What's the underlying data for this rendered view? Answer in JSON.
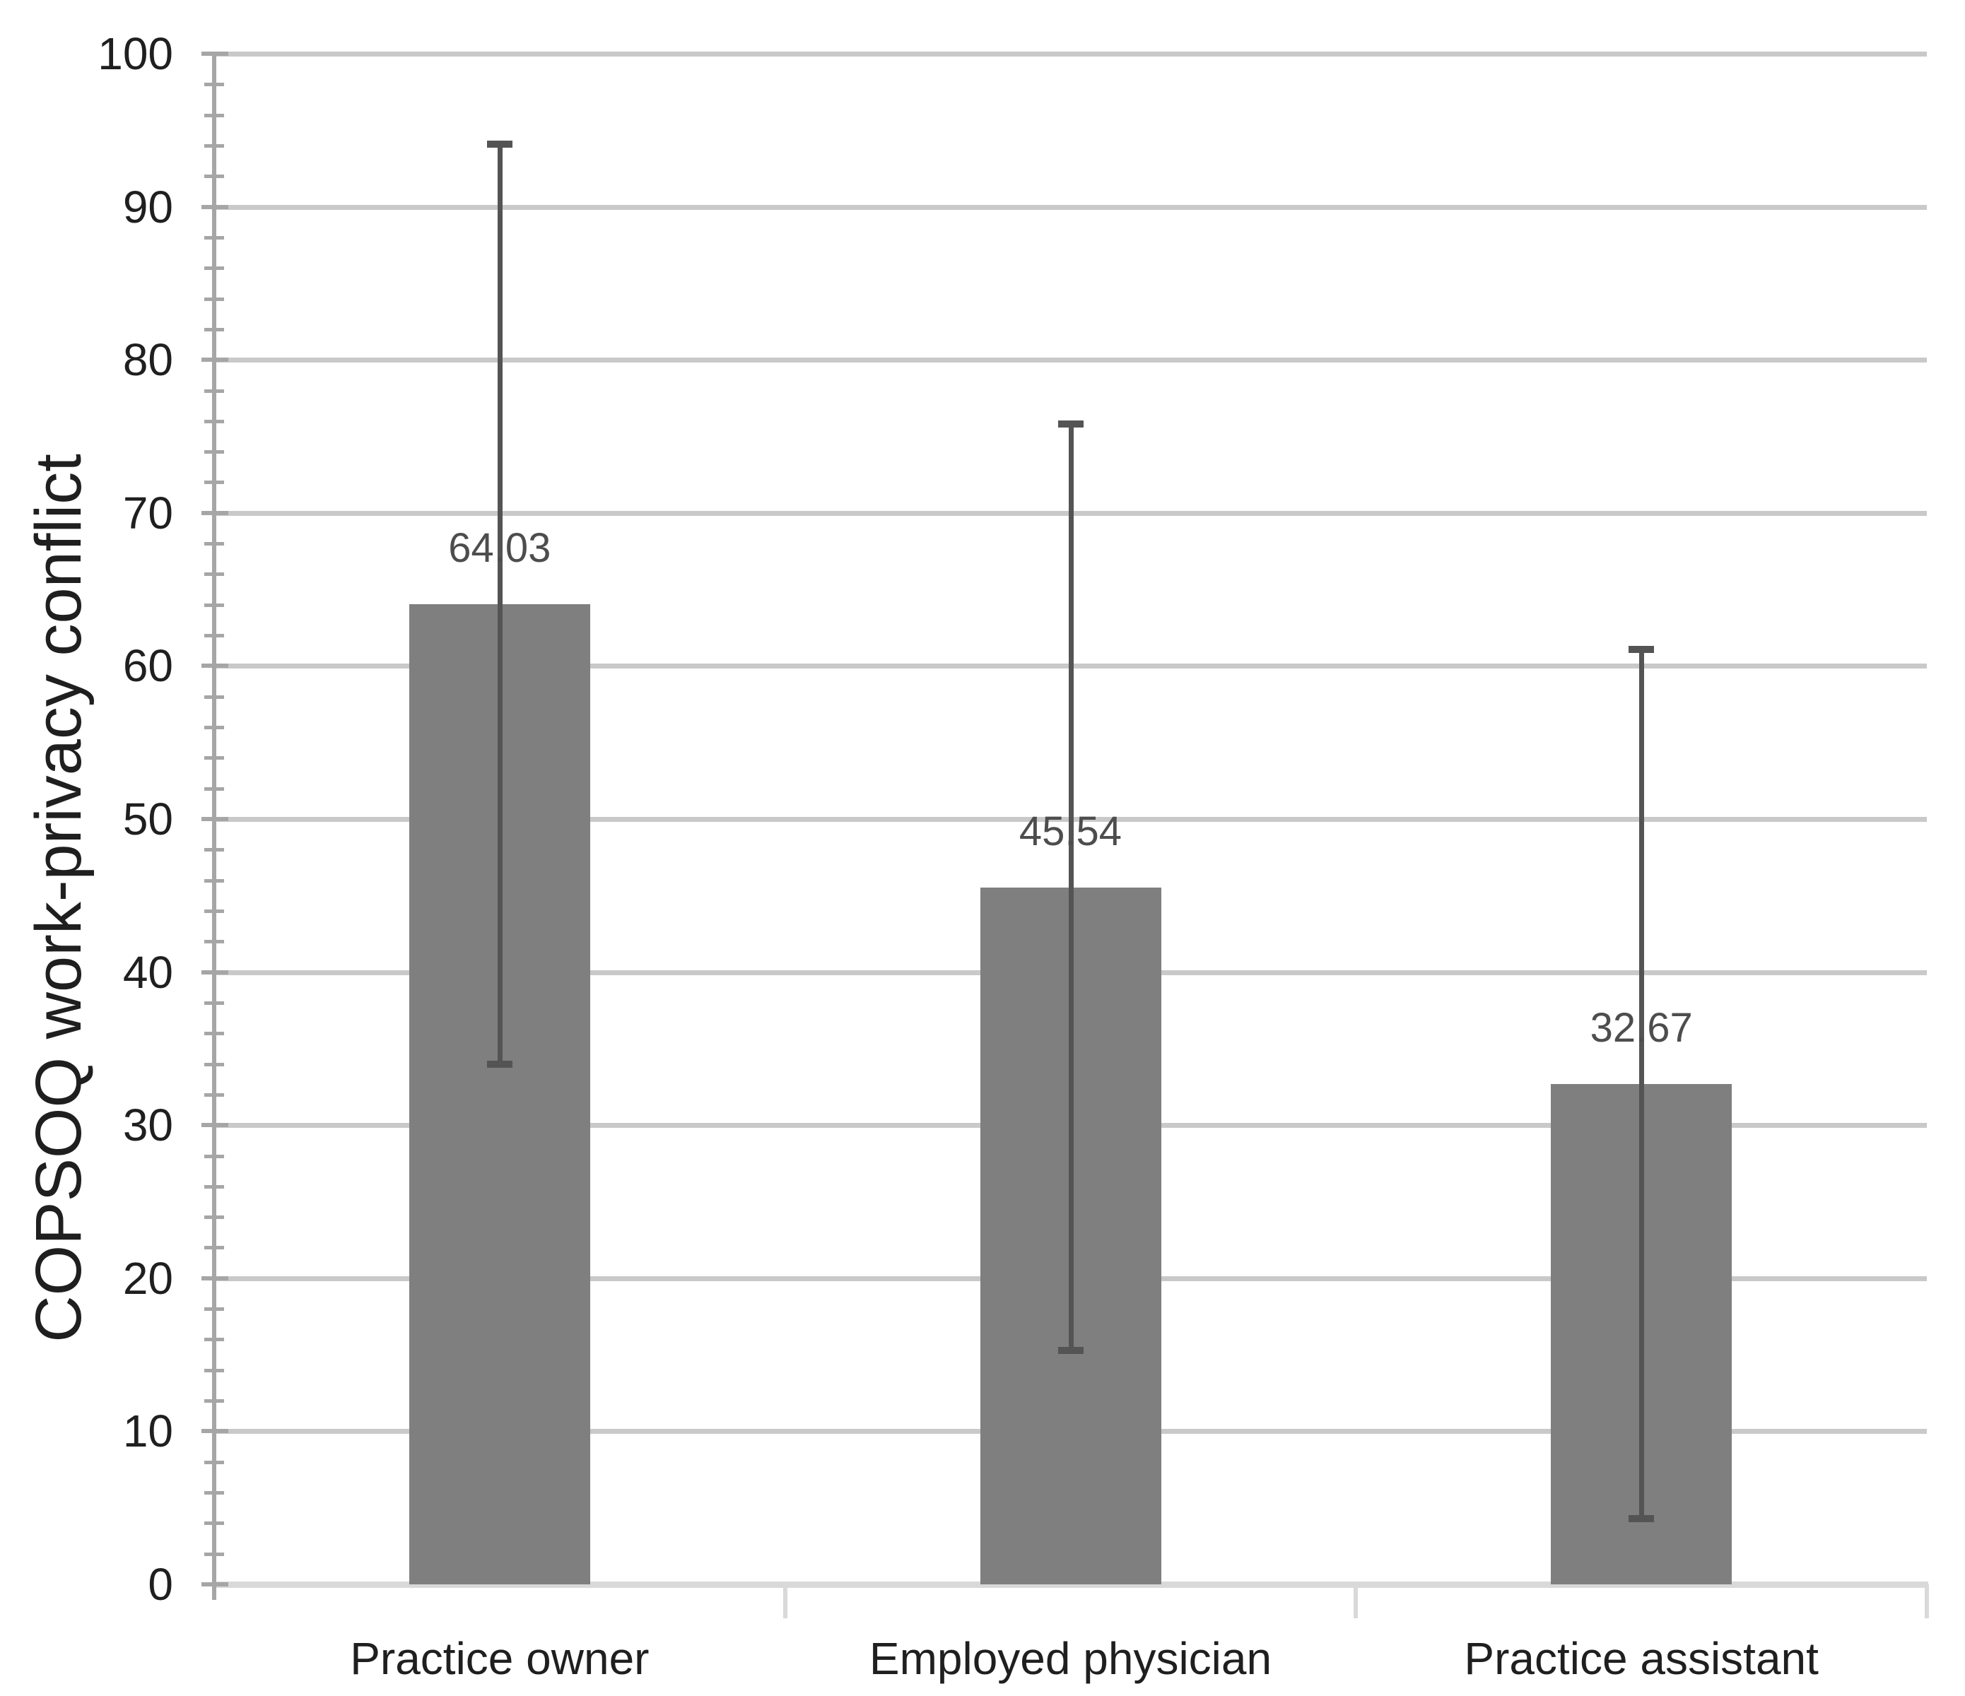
{
  "chart_data": {
    "type": "bar",
    "title": "",
    "ylabel": "COPSOQ work-privacy conflict",
    "xlabel": "",
    "categories": [
      "Practice owner",
      "Employed physician",
      "Practice assistant"
    ],
    "values": [
      64.03,
      45.54,
      32.67
    ],
    "data_labels": [
      "64.03",
      "45.54",
      "32.67"
    ],
    "error_bars": {
      "upper": [
        94.1,
        75.8,
        61.1
      ],
      "lower": [
        34.0,
        15.3,
        4.3
      ]
    },
    "ylim": [
      0,
      100
    ],
    "ytick_interval": 10,
    "yminor_tick_interval": 2,
    "ytick_labels": [
      "0",
      "10",
      "20",
      "30",
      "40",
      "50",
      "60",
      "70",
      "80",
      "90",
      "100"
    ],
    "grid": true,
    "legend_position": "none",
    "colors": {
      "bar_fill": "#7F7F7F",
      "error_bar": "#545454",
      "gridline": "#C9C9C9",
      "y_axis_line": "#A6A6A6",
      "x_axis_line": "#D9D9D9",
      "tick": "#A6A6A6",
      "axis_text": "#1F1F1F",
      "value_label_text": "#4D4D4D",
      "background": "#FFFFFF"
    }
  }
}
